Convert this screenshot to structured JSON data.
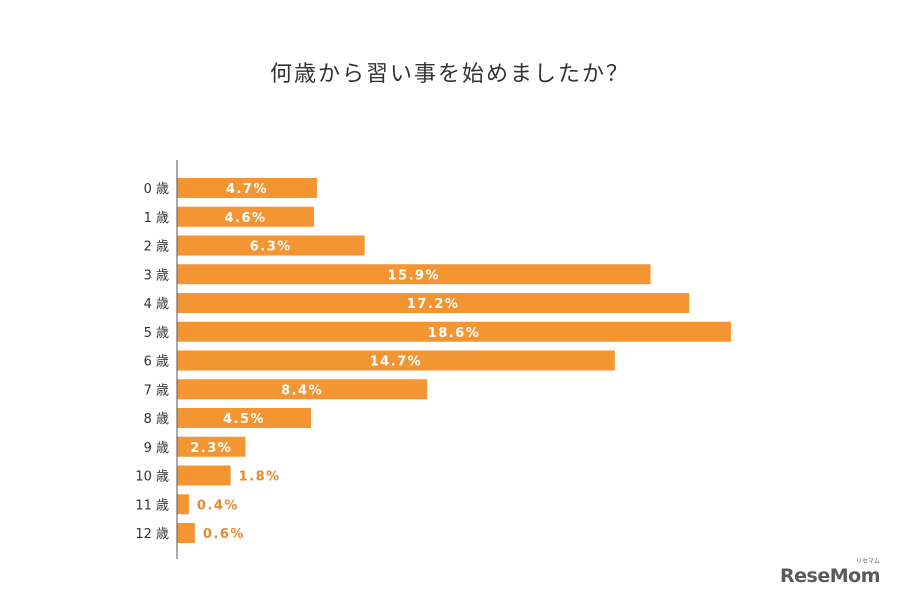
{
  "colors": {
    "bar": "#F39533",
    "label_inside": "#FFFFFF",
    "label_outside": "#E8892C",
    "axis": "#555555",
    "text": "#333333",
    "logo": "#5a5a5a"
  },
  "logo": {
    "text": "ReseMom",
    "kana": "リセマム"
  },
  "chart_data": {
    "type": "bar",
    "orientation": "horizontal",
    "title": "何歳から習い事を始めましたか？",
    "categories": [
      "0 歳",
      "1 歳",
      "2 歳",
      "3 歳",
      "4 歳",
      "5 歳",
      "6 歳",
      "7 歳",
      "8 歳",
      "9 歳",
      "10 歳",
      "11 歳",
      "12 歳"
    ],
    "values": [
      4.7,
      4.6,
      6.3,
      15.9,
      17.2,
      18.6,
      14.7,
      8.4,
      4.5,
      2.3,
      1.8,
      0.4,
      0.6
    ],
    "value_labels": [
      "4.7%",
      "4.6%",
      "6.3%",
      "15.9%",
      "17.2%",
      "18.6%",
      "14.7%",
      "8.4%",
      "4.5%",
      "2.3%",
      "1.8%",
      "0.4%",
      "0.6%"
    ],
    "xlabel": "",
    "ylabel": "",
    "xlim": [
      0,
      18.6
    ],
    "grid": false,
    "legend": "none"
  }
}
